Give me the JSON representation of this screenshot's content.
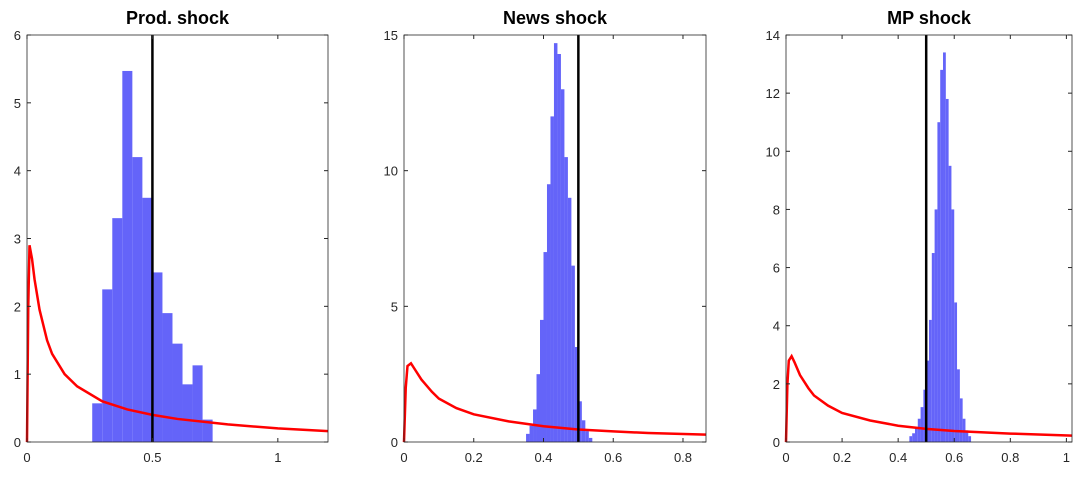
{
  "chart_data": [
    {
      "type": "histogram",
      "title": "Prod. shock",
      "bins": [
        0.26,
        0.3,
        0.34,
        0.38,
        0.42,
        0.46,
        0.5,
        0.54,
        0.58,
        0.62,
        0.66,
        0.7,
        0.74
      ],
      "values": [
        0.57,
        2.25,
        3.3,
        5.47,
        4.2,
        3.6,
        2.5,
        1.9,
        1.45,
        0.85,
        1.13,
        0.33
      ],
      "color": "#6464f9",
      "line": {
        "x": [
          0,
          0.005,
          0.01,
          0.02,
          0.03,
          0.05,
          0.08,
          0.1,
          0.15,
          0.2,
          0.3,
          0.4,
          0.5,
          0.6,
          0.8,
          1.0,
          1.2
        ],
        "y": [
          0,
          2.0,
          2.9,
          2.7,
          2.4,
          1.95,
          1.5,
          1.3,
          1.0,
          0.82,
          0.6,
          0.48,
          0.4,
          0.34,
          0.26,
          0.2,
          0.16
        ],
        "color": "#ff0000"
      },
      "vline": {
        "x": 0.5,
        "color": "#000000"
      },
      "xlim": [
        0,
        1.2
      ],
      "xticks": [
        0,
        0.5,
        1
      ],
      "ylim": [
        0,
        6
      ],
      "yticks": [
        0,
        1,
        2,
        3,
        4,
        5,
        6
      ]
    },
    {
      "type": "histogram",
      "title": "News shock",
      "bins": [
        0.35,
        0.36,
        0.37,
        0.38,
        0.39,
        0.4,
        0.41,
        0.42,
        0.43,
        0.44,
        0.45,
        0.46,
        0.47,
        0.48,
        0.49,
        0.5,
        0.51,
        0.52,
        0.53,
        0.54
      ],
      "values": [
        0.3,
        0.6,
        1.2,
        2.5,
        4.5,
        7,
        9.5,
        12,
        14.7,
        14.3,
        13,
        10.5,
        9,
        6.5,
        3.5,
        1.5,
        0.8,
        0.4,
        0.15
      ],
      "color": "#6464f9",
      "line": {
        "x": [
          0,
          0.005,
          0.01,
          0.02,
          0.03,
          0.05,
          0.08,
          0.1,
          0.15,
          0.2,
          0.3,
          0.4,
          0.5,
          0.6,
          0.7,
          0.866
        ],
        "y": [
          0,
          2.0,
          2.8,
          2.9,
          2.7,
          2.3,
          1.85,
          1.6,
          1.25,
          1.02,
          0.76,
          0.58,
          0.46,
          0.39,
          0.33,
          0.27
        ],
        "color": "#ff0000"
      },
      "vline": {
        "x": 0.5,
        "color": "#000000"
      },
      "xlim": [
        0,
        0.866
      ],
      "xticks": [
        0,
        0.2,
        0.4,
        0.6,
        0.8
      ],
      "ylim": [
        0,
        15
      ],
      "yticks": [
        0,
        5,
        10,
        15
      ]
    },
    {
      "type": "histogram",
      "title": "MP shock",
      "bins": [
        0.44,
        0.45,
        0.46,
        0.47,
        0.48,
        0.49,
        0.5,
        0.51,
        0.52,
        0.53,
        0.54,
        0.55,
        0.56,
        0.57,
        0.58,
        0.59,
        0.6,
        0.61,
        0.62,
        0.63,
        0.64,
        0.65,
        0.66
      ],
      "values": [
        0.2,
        0.3,
        0.5,
        0.8,
        1.2,
        1.8,
        2.8,
        4.2,
        6.5,
        8,
        11,
        12.8,
        13.4,
        11.8,
        9.5,
        8,
        4.8,
        2.5,
        1.5,
        0.8,
        0.4,
        0.2
      ],
      "color": "#6464f9",
      "line": {
        "x": [
          0,
          0.005,
          0.01,
          0.02,
          0.03,
          0.05,
          0.08,
          0.1,
          0.15,
          0.2,
          0.3,
          0.4,
          0.5,
          0.6,
          0.8,
          1.02
        ],
        "y": [
          0,
          2.0,
          2.8,
          2.95,
          2.75,
          2.3,
          1.85,
          1.6,
          1.25,
          1.0,
          0.74,
          0.56,
          0.45,
          0.38,
          0.29,
          0.22
        ],
        "color": "#ff0000"
      },
      "vline": {
        "x": 0.5,
        "color": "#000000"
      },
      "xlim": [
        0,
        1.02
      ],
      "xticks": [
        0,
        0.2,
        0.4,
        0.6,
        0.8,
        1
      ],
      "ylim": [
        0,
        14
      ],
      "yticks": [
        0,
        2,
        4,
        6,
        8,
        10,
        12,
        14
      ]
    }
  ]
}
